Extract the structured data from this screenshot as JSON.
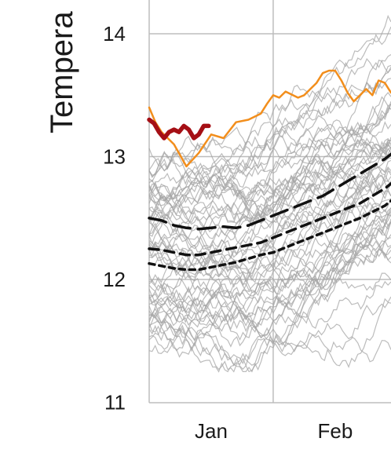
{
  "chart_data": {
    "type": "line",
    "ylabel": "Tempera",
    "x_ticks": [
      "Jan",
      "Feb"
    ],
    "y_ticks": [
      11,
      12,
      13,
      14
    ],
    "xlim": [
      0,
      1.95
    ],
    "ylim": [
      11,
      14.45
    ],
    "grid": true,
    "colors": {
      "ensemble": "#a6a6a6",
      "highlight_orange": "#f28e1c",
      "current_year": "#a50f15",
      "percentile": "#111111",
      "grid": "#bdbdbd"
    },
    "series": [
      {
        "style": "orange",
        "x": [
          0,
          0.05,
          0.1,
          0.2,
          0.3,
          0.4,
          0.5,
          0.6,
          0.7,
          0.8,
          0.9,
          0.95,
          1.0,
          1.05,
          1.1,
          1.2,
          1.25,
          1.3,
          1.35,
          1.4,
          1.45,
          1.5,
          1.55,
          1.6,
          1.65,
          1.7,
          1.75,
          1.8,
          1.85,
          1.9,
          1.95
        ],
        "y": [
          13.4,
          13.28,
          13.2,
          13.1,
          12.92,
          13.03,
          13.18,
          13.15,
          13.28,
          13.3,
          13.35,
          13.43,
          13.5,
          13.48,
          13.53,
          13.48,
          13.5,
          13.55,
          13.6,
          13.68,
          13.7,
          13.7,
          13.62,
          13.52,
          13.45,
          13.5,
          13.55,
          13.5,
          13.62,
          13.6,
          13.52
        ]
      },
      {
        "style": "current",
        "x": [
          0,
          0.04,
          0.08,
          0.12,
          0.16,
          0.2,
          0.24,
          0.28,
          0.32,
          0.36,
          0.4,
          0.44,
          0.48
        ],
        "y": [
          13.3,
          13.27,
          13.2,
          13.15,
          13.2,
          13.22,
          13.2,
          13.25,
          13.22,
          13.15,
          13.18,
          13.25,
          13.25
        ]
      },
      {
        "style": "dash-long",
        "x": [
          0,
          0.1,
          0.2,
          0.3,
          0.4,
          0.5,
          0.6,
          0.7,
          0.8,
          0.9,
          1.0,
          1.1,
          1.2,
          1.3,
          1.4,
          1.5,
          1.6,
          1.7,
          1.8,
          1.9,
          1.95
        ],
        "y": [
          12.5,
          12.48,
          12.44,
          12.42,
          12.41,
          12.42,
          12.43,
          12.42,
          12.44,
          12.48,
          12.52,
          12.56,
          12.6,
          12.64,
          12.68,
          12.74,
          12.8,
          12.86,
          12.92,
          12.98,
          13.02
        ]
      },
      {
        "style": "dash-mid",
        "x": [
          0,
          0.1,
          0.2,
          0.3,
          0.4,
          0.5,
          0.6,
          0.7,
          0.8,
          0.9,
          1.0,
          1.1,
          1.2,
          1.3,
          1.4,
          1.5,
          1.6,
          1.7,
          1.8,
          1.9,
          1.95
        ],
        "y": [
          12.25,
          12.24,
          12.22,
          12.2,
          12.2,
          12.22,
          12.24,
          12.26,
          12.28,
          12.3,
          12.34,
          12.38,
          12.42,
          12.46,
          12.5,
          12.54,
          12.58,
          12.62,
          12.68,
          12.74,
          12.78
        ]
      },
      {
        "style": "dash-short",
        "x": [
          0,
          0.1,
          0.2,
          0.3,
          0.4,
          0.5,
          0.6,
          0.7,
          0.8,
          0.9,
          1.0,
          1.1,
          1.2,
          1.3,
          1.4,
          1.5,
          1.6,
          1.7,
          1.8,
          1.9,
          1.95
        ],
        "y": [
          12.13,
          12.11,
          12.09,
          12.08,
          12.08,
          12.1,
          12.12,
          12.14,
          12.17,
          12.2,
          12.22,
          12.26,
          12.3,
          12.34,
          12.38,
          12.42,
          12.46,
          12.5,
          12.55,
          12.6,
          12.64
        ]
      }
    ]
  }
}
